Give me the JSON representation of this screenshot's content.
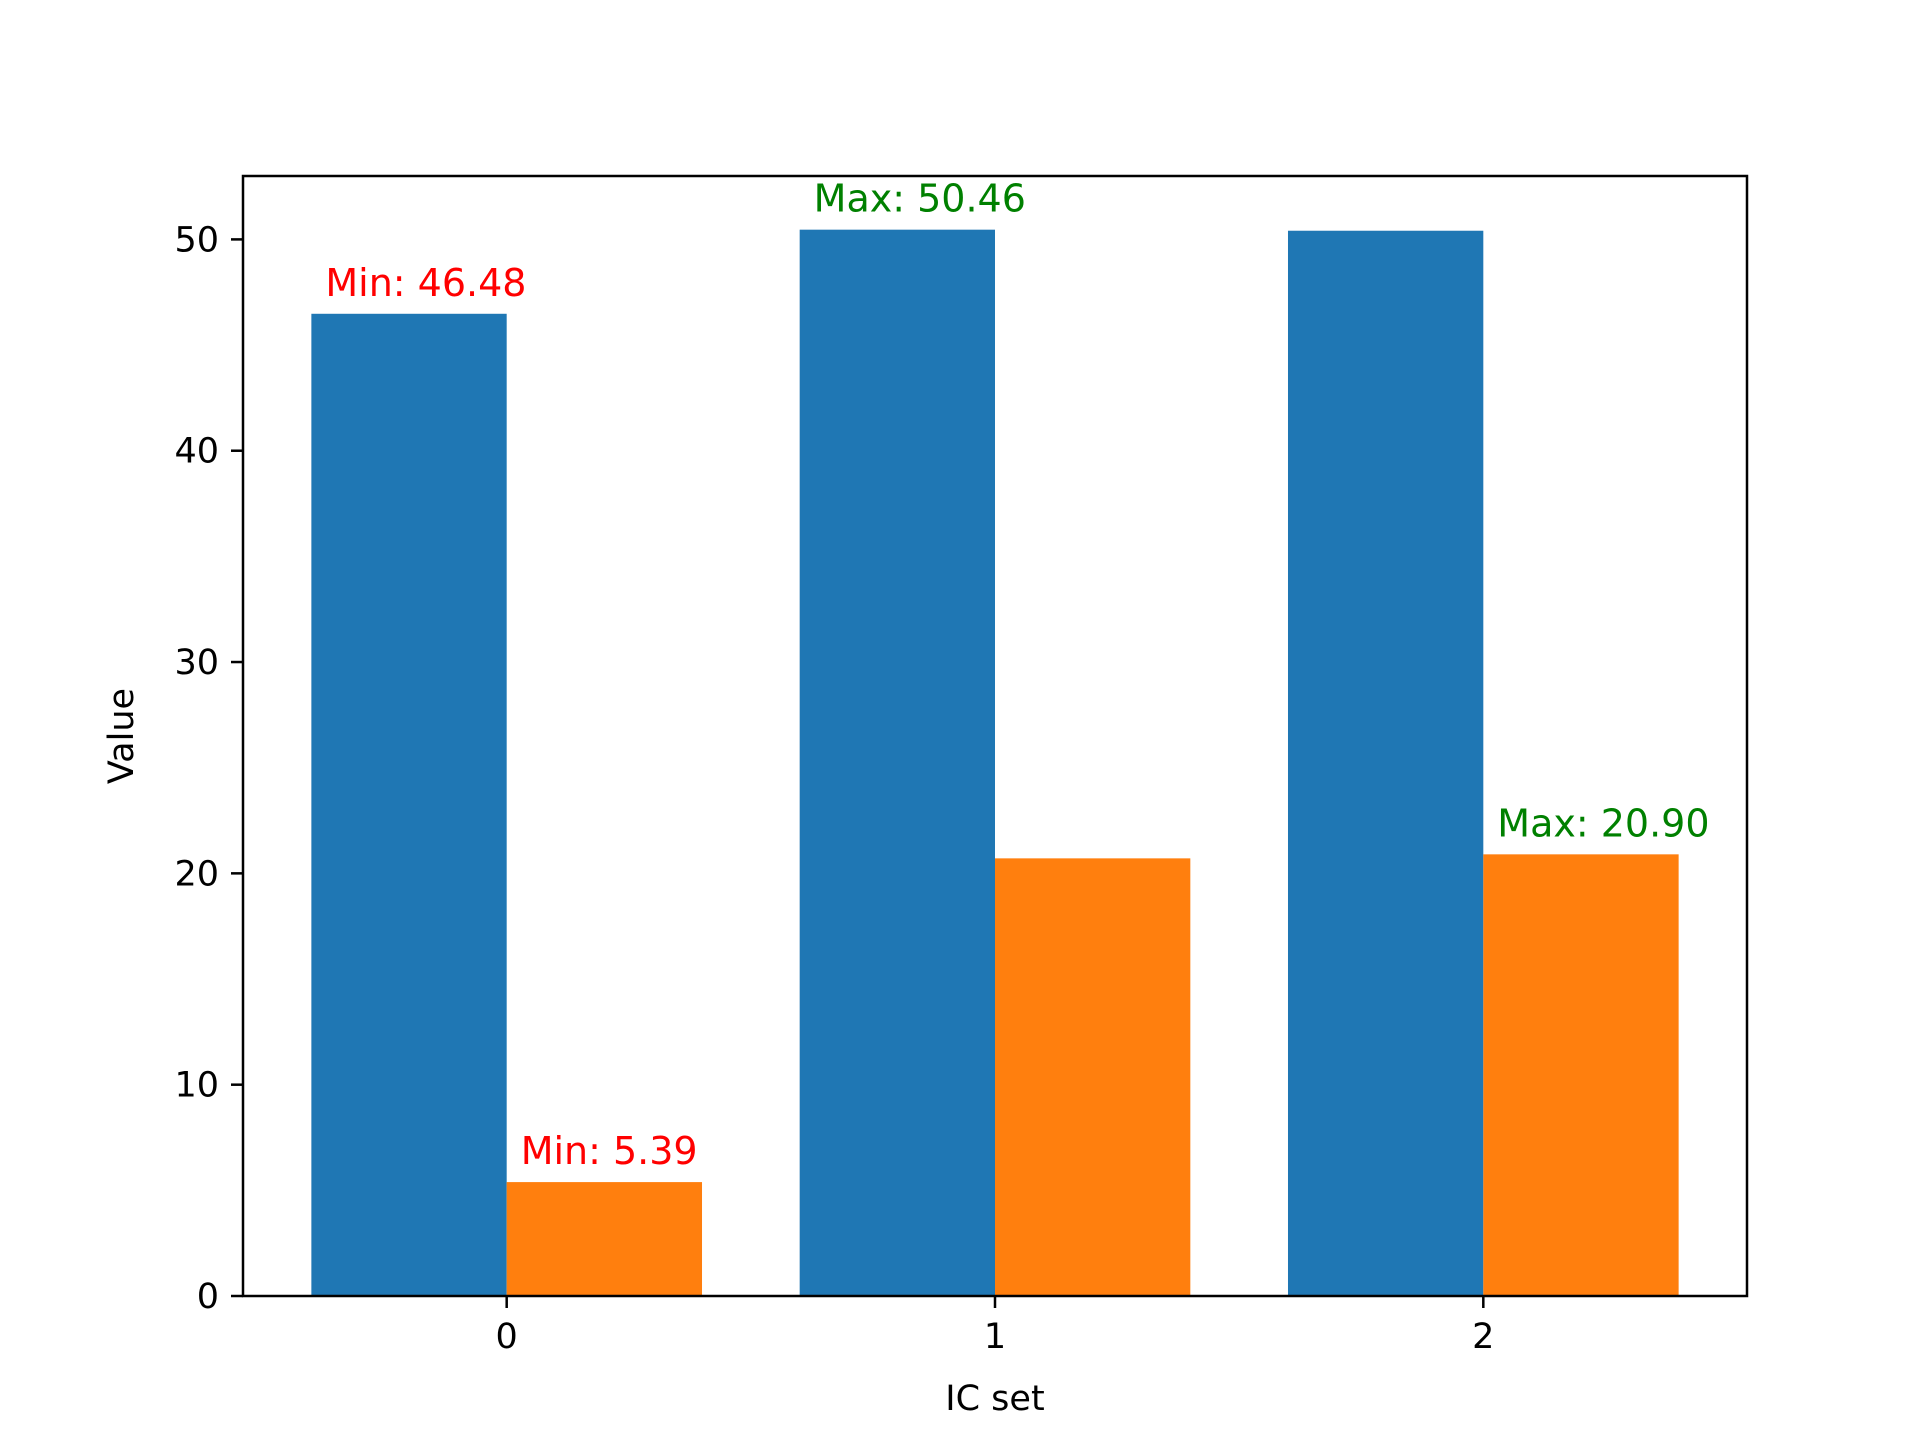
{
  "chart_data": {
    "type": "bar",
    "xlabel": "IC set",
    "ylabel": "Value",
    "categories": [
      "0",
      "1",
      "2"
    ],
    "ylim": [
      0,
      53
    ],
    "yticks": [
      0,
      10,
      20,
      30,
      40,
      50
    ],
    "grid": false,
    "legend": "none",
    "series": [
      {
        "color": "#1f77b4",
        "values": [
          46.48,
          50.46,
          50.41
        ]
      },
      {
        "color": "#ff7f0e",
        "values": [
          5.39,
          20.71,
          20.9
        ]
      }
    ],
    "annotations": [
      {
        "series": 0,
        "category": 0,
        "text": "Min: 46.48",
        "color": "#ff0000"
      },
      {
        "series": 0,
        "category": 1,
        "text": "Max: 50.46",
        "color": "#008000"
      },
      {
        "series": 1,
        "category": 0,
        "text": "Min: 5.39",
        "color": "#ff0000"
      },
      {
        "series": 1,
        "category": 2,
        "text": "Max: 20.90",
        "color": "#008000"
      }
    ]
  }
}
